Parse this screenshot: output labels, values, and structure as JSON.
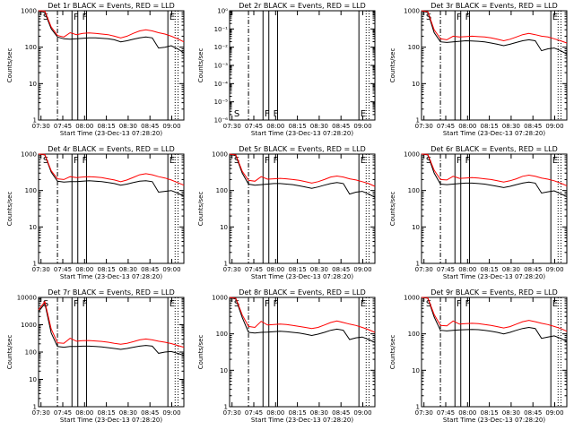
{
  "chart_data": [
    {
      "type": "line",
      "title": "Det 1r BLACK = Events, RED = LLD",
      "xlabel": "Start Time (23-Dec-13 07:28:20)",
      "ylabel": "Counts/sec",
      "y_ticks": [
        "1",
        "10",
        "100",
        "1000"
      ],
      "ylim": [
        1,
        1000
      ],
      "log_y": true,
      "markers": [
        "S",
        "F",
        "F",
        "E"
      ],
      "series": [
        {
          "color": "#000000",
          "values": [
            1000,
            900,
            320,
            190,
            170,
            165,
            170,
            175,
            180,
            180,
            175,
            170,
            160,
            140,
            150,
            165,
            180,
            190,
            180,
            95,
            100,
            110,
            90,
            70
          ]
        },
        {
          "color": "#ff0000",
          "values": [
            1000,
            980,
            360,
            210,
            190,
            250,
            220,
            240,
            245,
            240,
            230,
            220,
            200,
            180,
            200,
            240,
            280,
            300,
            280,
            250,
            230,
            200,
            170,
            140
          ]
        }
      ]
    },
    {
      "type": "line",
      "title": "Det 2r BLACK = Events, RED = LLD",
      "xlabel": "Start Time (23-Dec-13 07:28:20)",
      "ylabel": "Counts/sec",
      "y_ticks": [
        "10⁻⁶",
        "10⁻⁵",
        "10⁻⁴",
        "10⁻³",
        "10⁻²",
        "10⁻¹",
        "10⁰"
      ],
      "ylim": [
        1e-06,
        1
      ],
      "log_y": true,
      "markers": [
        "S",
        "F",
        "F",
        "E"
      ],
      "series": []
    },
    {
      "type": "line",
      "title": "Det 3r BLACK = Events, RED = LLD",
      "xlabel": "Start Time (23-Dec-13 07:28:20)",
      "ylabel": "Counts/sec",
      "y_ticks": [
        "1",
        "10",
        "100",
        "1000"
      ],
      "ylim": [
        1,
        1000
      ],
      "log_y": true,
      "markers": [
        "S",
        "F",
        "F",
        "E"
      ],
      "series": [
        {
          "color": "#000000",
          "values": [
            1000,
            900,
            250,
            140,
            135,
            140,
            145,
            150,
            148,
            145,
            140,
            130,
            120,
            110,
            120,
            135,
            150,
            160,
            150,
            80,
            90,
            95,
            80,
            65
          ]
        },
        {
          "color": "#ff0000",
          "values": [
            1000,
            950,
            300,
            170,
            160,
            200,
            190,
            195,
            200,
            195,
            190,
            180,
            165,
            150,
            165,
            190,
            220,
            240,
            220,
            200,
            190,
            170,
            150,
            130
          ]
        }
      ]
    },
    {
      "type": "line",
      "title": "Det 4r BLACK = Events, RED = LLD",
      "xlabel": "Start Time (23-Dec-13 07:28:20)",
      "ylabel": "Counts/sec",
      "y_ticks": [
        "1",
        "10",
        "100",
        "1000"
      ],
      "ylim": [
        1,
        1000
      ],
      "log_y": true,
      "markers": [
        "S",
        "F",
        "F",
        "E"
      ],
      "series": [
        {
          "color": "#000000",
          "values": [
            1000,
            950,
            320,
            180,
            170,
            175,
            175,
            180,
            185,
            180,
            175,
            165,
            155,
            140,
            150,
            165,
            180,
            185,
            175,
            90,
            95,
            100,
            85,
            70
          ]
        },
        {
          "color": "#ff0000",
          "values": [
            1000,
            980,
            350,
            210,
            200,
            240,
            225,
            235,
            240,
            235,
            225,
            210,
            195,
            175,
            195,
            230,
            270,
            290,
            270,
            240,
            220,
            195,
            165,
            140
          ]
        }
      ]
    },
    {
      "type": "line",
      "title": "Det 5r BLACK = Events, RED = LLD",
      "xlabel": "Start Time (23-Dec-13 07:28:20)",
      "ylabel": "Counts/sec",
      "y_ticks": [
        "1",
        "10",
        "100",
        "1000"
      ],
      "ylim": [
        1,
        1000
      ],
      "log_y": true,
      "markers": [
        "S",
        "F",
        "F",
        "E"
      ],
      "series": [
        {
          "color": "#000000",
          "values": [
            1000,
            900,
            300,
            150,
            140,
            145,
            150,
            155,
            155,
            150,
            145,
            135,
            125,
            115,
            125,
            140,
            155,
            165,
            155,
            80,
            90,
            95,
            80,
            65
          ]
        },
        {
          "color": "#ff0000",
          "values": [
            1000,
            950,
            340,
            190,
            180,
            240,
            205,
            210,
            215,
            210,
            200,
            190,
            175,
            160,
            175,
            200,
            235,
            250,
            235,
            210,
            195,
            175,
            155,
            130
          ]
        }
      ]
    },
    {
      "type": "line",
      "title": "Det 6r BLACK = Events, RED = LLD",
      "xlabel": "Start Time (23-Dec-13 07:28:20)",
      "ylabel": "Counts/sec",
      "y_ticks": [
        "1",
        "10",
        "100",
        "1000"
      ],
      "ylim": [
        1,
        1000
      ],
      "log_y": true,
      "markers": [
        "S",
        "F",
        "F",
        "E"
      ],
      "series": [
        {
          "color": "#000000",
          "values": [
            1000,
            950,
            300,
            150,
            145,
            150,
            155,
            160,
            160,
            155,
            150,
            140,
            130,
            120,
            130,
            145,
            160,
            170,
            160,
            85,
            92,
            98,
            82,
            68
          ]
        },
        {
          "color": "#ff0000",
          "values": [
            1000,
            980,
            360,
            200,
            195,
            245,
            215,
            220,
            225,
            220,
            210,
            200,
            185,
            170,
            185,
            210,
            245,
            265,
            245,
            220,
            205,
            185,
            160,
            135
          ]
        }
      ]
    },
    {
      "type": "line",
      "title": "Det 7r BLACK = Events, RED = LLD",
      "xlabel": "Start Time (23-Dec-13 07:28:20)",
      "ylabel": "Counts/sec",
      "y_ticks": [
        "1",
        "10",
        "100",
        "1000",
        "10000"
      ],
      "ylim": [
        1,
        10000
      ],
      "log_y": true,
      "markers": [
        "S",
        "F",
        "F",
        "E"
      ],
      "series": [
        {
          "color": "#000000",
          "values": [
            3000,
            6000,
            500,
            160,
            150,
            160,
            160,
            165,
            165,
            160,
            155,
            145,
            135,
            125,
            135,
            150,
            165,
            175,
            165,
            90,
            100,
            105,
            90,
            75
          ]
        },
        {
          "color": "#ff0000",
          "values": [
            3500,
            7000,
            700,
            220,
            210,
            320,
            250,
            260,
            265,
            255,
            245,
            230,
            210,
            195,
            210,
            240,
            280,
            300,
            280,
            250,
            230,
            205,
            175,
            150
          ]
        }
      ]
    },
    {
      "type": "line",
      "title": "Det 8r BLACK = Events, RED = LLD",
      "xlabel": "Start Time (23-Dec-13 07:28:20)",
      "ylabel": "Counts/sec",
      "y_ticks": [
        "1",
        "10",
        "100",
        "1000"
      ],
      "ylim": [
        1,
        1000
      ],
      "log_y": true,
      "markers": [
        "S",
        "F",
        "F",
        "E"
      ],
      "series": [
        {
          "color": "#000000",
          "values": [
            1000,
            900,
            280,
            110,
            105,
            110,
            112,
            115,
            118,
            115,
            110,
            105,
            98,
            90,
            98,
            110,
            125,
            135,
            125,
            70,
            78,
            82,
            70,
            58
          ]
        },
        {
          "color": "#ff0000",
          "values": [
            1000,
            950,
            330,
            160,
            150,
            220,
            175,
            180,
            185,
            180,
            170,
            160,
            150,
            140,
            150,
            175,
            205,
            225,
            205,
            185,
            170,
            150,
            130,
            110
          ]
        }
      ]
    },
    {
      "type": "line",
      "title": "Det 9r BLACK = Events, RED = LLD",
      "xlabel": "Start Time (23-Dec-13 07:28:20)",
      "ylabel": "Counts/sec",
      "y_ticks": [
        "1",
        "10",
        "100",
        "1000"
      ],
      "ylim": [
        1,
        1000
      ],
      "log_y": true,
      "markers": [
        "S",
        "F",
        "F",
        "E"
      ],
      "series": [
        {
          "color": "#000000",
          "values": [
            1000,
            950,
            290,
            125,
            120,
            125,
            128,
            130,
            132,
            130,
            125,
            118,
            110,
            100,
            110,
            125,
            140,
            150,
            140,
            75,
            82,
            88,
            75,
            62
          ]
        },
        {
          "color": "#ff0000",
          "values": [
            1000,
            980,
            340,
            170,
            165,
            225,
            185,
            190,
            195,
            190,
            180,
            170,
            158,
            145,
            158,
            185,
            215,
            235,
            215,
            195,
            180,
            160,
            140,
            118
          ]
        }
      ]
    }
  ],
  "x_ticks": [
    "07:30",
    "07:45",
    "08:00",
    "08:15",
    "08:30",
    "08:45",
    "09:00"
  ],
  "x_range_minutes": [
    0,
    100
  ],
  "vlines": {
    "dashdot": 13,
    "solid": [
      23,
      27,
      33,
      89
    ],
    "dotted": [
      94,
      96
    ]
  },
  "marker_positions": [
    3,
    24,
    30,
    90
  ]
}
